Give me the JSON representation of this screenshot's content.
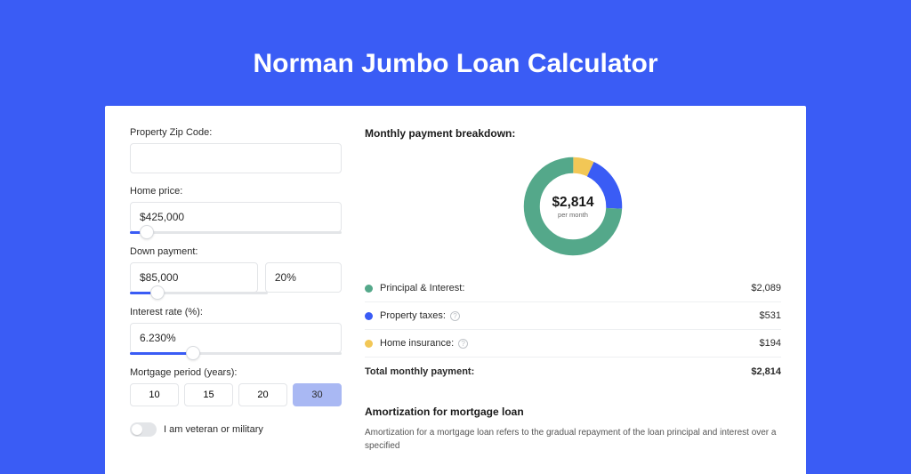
{
  "page": {
    "title": "Norman Jumbo Loan Calculator"
  },
  "colors": {
    "primary": "#3a5cf5",
    "seriesPI": "#54a88a",
    "seriesTax": "#3a5cf5",
    "seriesIns": "#f2c756"
  },
  "fields": {
    "zip": {
      "label": "Property Zip Code:",
      "value": ""
    },
    "price": {
      "label": "Home price:",
      "value": "$425,000",
      "sliderPct": 8
    },
    "down": {
      "label": "Down payment:",
      "value": "$85,000",
      "pct": "20%",
      "sliderPct": 20
    },
    "rate": {
      "label": "Interest rate (%):",
      "value": "6.230%",
      "sliderPct": 30
    },
    "period": {
      "label": "Mortgage period (years):",
      "options": [
        "10",
        "15",
        "20",
        "30"
      ],
      "selected": "30"
    },
    "veteran": {
      "label": "I am veteran or military",
      "on": false
    }
  },
  "breakdown": {
    "title": "Monthly payment breakdown:",
    "centerAmount": "$2,814",
    "centerSub": "per month",
    "items": [
      {
        "key": "pi",
        "label": "Principal & Interest:",
        "value": "$2,089",
        "pct": 74.2,
        "color": "#54a88a",
        "info": false
      },
      {
        "key": "tax",
        "label": "Property taxes:",
        "value": "$531",
        "pct": 18.9,
        "color": "#3a5cf5",
        "info": true
      },
      {
        "key": "ins",
        "label": "Home insurance:",
        "value": "$194",
        "pct": 6.9,
        "color": "#f2c756",
        "info": true
      }
    ],
    "totalLabel": "Total monthly payment:",
    "totalValue": "$2,814"
  },
  "amortization": {
    "title": "Amortization for mortgage loan",
    "body": "Amortization for a mortgage loan refers to the gradual repayment of the loan principal and interest over a specified"
  }
}
